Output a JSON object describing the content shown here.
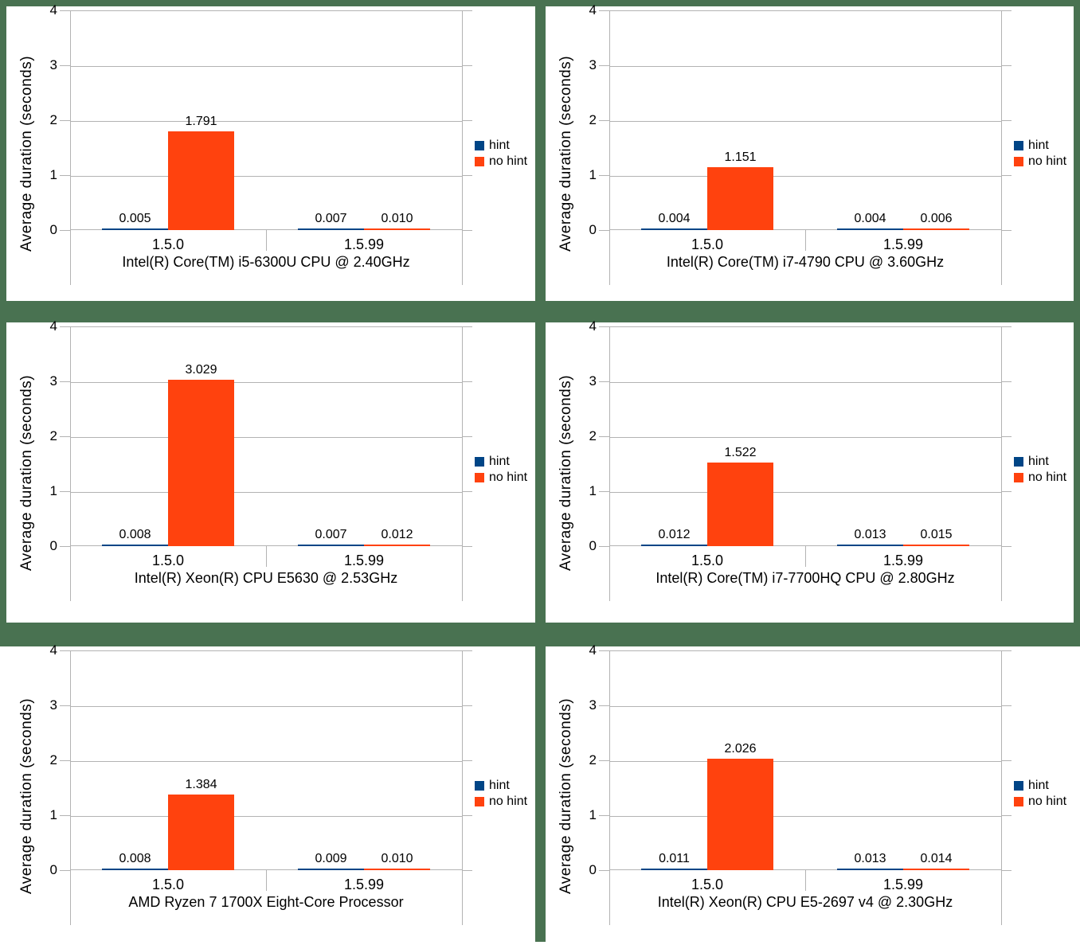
{
  "page": {
    "background_color": "#497251",
    "panel_color": "#ffffff",
    "grid_line_color": "#b3b3b3",
    "text_color": "#000000"
  },
  "legend": {
    "position": "right",
    "items": [
      {
        "label": "hint",
        "color": "#004586"
      },
      {
        "label": "no hint",
        "color": "#FF420E"
      }
    ]
  },
  "chart_data": [
    {
      "type": "bar",
      "title": "Intel(R) Core(TM) i5-6300U CPU @ 2.40GHz",
      "ylabel": "Average duration (seconds)",
      "ylim": [
        0,
        4
      ],
      "yticks": [
        "0",
        "1",
        "2",
        "3",
        "4"
      ],
      "categories": [
        "1.5.0",
        "1.5.99"
      ],
      "grid": true,
      "legend_position": "right",
      "series": [
        {
          "name": "hint",
          "color": "#004586",
          "values": [
            0.005,
            0.007
          ],
          "value_labels": [
            "0.005",
            "0.007"
          ]
        },
        {
          "name": "no hint",
          "color": "#FF420E",
          "values": [
            1.791,
            0.01
          ],
          "value_labels": [
            "1.791",
            "0.010"
          ]
        }
      ]
    },
    {
      "type": "bar",
      "title": "Intel(R) Core(TM) i7-4790 CPU @ 3.60GHz",
      "ylabel": "Average duration (seconds)",
      "ylim": [
        0,
        4
      ],
      "yticks": [
        "0",
        "1",
        "2",
        "3",
        "4"
      ],
      "categories": [
        "1.5.0",
        "1.5.99"
      ],
      "grid": true,
      "legend_position": "right",
      "series": [
        {
          "name": "hint",
          "color": "#004586",
          "values": [
            0.004,
            0.004
          ],
          "value_labels": [
            "0.004",
            "0.004"
          ]
        },
        {
          "name": "no hint",
          "color": "#FF420E",
          "values": [
            1.151,
            0.006
          ],
          "value_labels": [
            "1.151",
            "0.006"
          ]
        }
      ]
    },
    {
      "type": "bar",
      "title": "Intel(R) Xeon(R) CPU E5630 @ 2.53GHz",
      "ylabel": "Average duration (seconds)",
      "ylim": [
        0,
        4
      ],
      "yticks": [
        "0",
        "1",
        "2",
        "3",
        "4"
      ],
      "categories": [
        "1.5.0",
        "1.5.99"
      ],
      "grid": true,
      "legend_position": "right",
      "series": [
        {
          "name": "hint",
          "color": "#004586",
          "values": [
            0.008,
            0.007
          ],
          "value_labels": [
            "0.008",
            "0.007"
          ]
        },
        {
          "name": "no hint",
          "color": "#FF420E",
          "values": [
            3.029,
            0.012
          ],
          "value_labels": [
            "3.029",
            "0.012"
          ]
        }
      ]
    },
    {
      "type": "bar",
      "title": "Intel(R) Core(TM) i7-7700HQ CPU @ 2.80GHz",
      "ylabel": "Average duration (seconds)",
      "ylim": [
        0,
        4
      ],
      "yticks": [
        "0",
        "1",
        "2",
        "3",
        "4"
      ],
      "categories": [
        "1.5.0",
        "1.5.99"
      ],
      "grid": true,
      "legend_position": "right",
      "series": [
        {
          "name": "hint",
          "color": "#004586",
          "values": [
            0.012,
            0.013
          ],
          "value_labels": [
            "0.012",
            "0.013"
          ]
        },
        {
          "name": "no hint",
          "color": "#FF420E",
          "values": [
            1.522,
            0.015
          ],
          "value_labels": [
            "1.522",
            "0.015"
          ]
        }
      ]
    },
    {
      "type": "bar",
      "title": "AMD Ryzen 7 1700X Eight-Core Processor",
      "ylabel": "Average duration (seconds)",
      "ylim": [
        0,
        4
      ],
      "yticks": [
        "0",
        "1",
        "2",
        "3",
        "4"
      ],
      "categories": [
        "1.5.0",
        "1.5.99"
      ],
      "grid": true,
      "legend_position": "right",
      "series": [
        {
          "name": "hint",
          "color": "#004586",
          "values": [
            0.008,
            0.009
          ],
          "value_labels": [
            "0.008",
            "0.009"
          ]
        },
        {
          "name": "no hint",
          "color": "#FF420E",
          "values": [
            1.384,
            0.01
          ],
          "value_labels": [
            "1.384",
            "0.010"
          ]
        }
      ]
    },
    {
      "type": "bar",
      "title": "Intel(R) Xeon(R) CPU E5-2697 v4 @ 2.30GHz",
      "ylabel": "Average duration (seconds)",
      "ylim": [
        0,
        4
      ],
      "yticks": [
        "0",
        "1",
        "2",
        "3",
        "4"
      ],
      "categories": [
        "1.5.0",
        "1.5.99"
      ],
      "grid": true,
      "legend_position": "right",
      "series": [
        {
          "name": "hint",
          "color": "#004586",
          "values": [
            0.011,
            0.013
          ],
          "value_labels": [
            "0.011",
            "0.013"
          ]
        },
        {
          "name": "no hint",
          "color": "#FF420E",
          "values": [
            2.026,
            0.014
          ],
          "value_labels": [
            "2.026",
            "0.014"
          ]
        }
      ]
    }
  ]
}
